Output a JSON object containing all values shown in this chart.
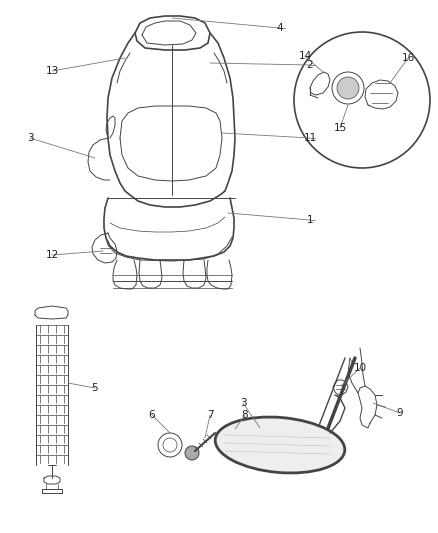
{
  "bg_color": "#ffffff",
  "line_color": "#444444",
  "lw_main": 1.2,
  "lw_thin": 0.7,
  "lw_hair": 0.5,
  "label_fontsize": 7.5,
  "label_color": "#222222",
  "leader_color": "#777777"
}
